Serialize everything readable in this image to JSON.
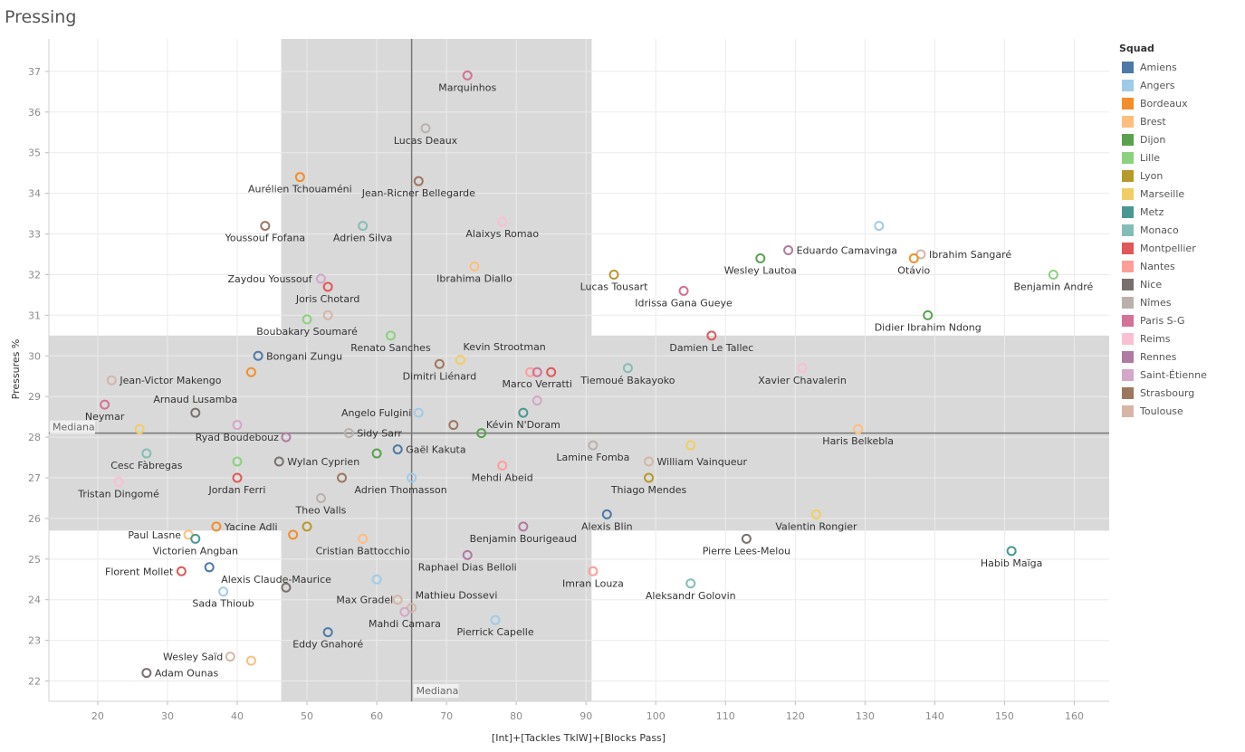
{
  "page": {
    "title": "Pressing"
  },
  "chart_data": {
    "type": "scatter",
    "title": "Pressing",
    "xlabel": "[Int]+[Tackles TklW]+[Blocks Pass]",
    "ylabel": "Pressures %",
    "xlim": [
      13,
      165
    ],
    "ylim": [
      21.5,
      37.8
    ],
    "x_ticks": [
      20,
      30,
      40,
      50,
      60,
      70,
      80,
      90,
      100,
      110,
      120,
      130,
      140,
      150,
      160
    ],
    "y_ticks": [
      22,
      23,
      24,
      25,
      26,
      27,
      28,
      29,
      30,
      31,
      32,
      33,
      34,
      35,
      36,
      37
    ],
    "grid": true,
    "legend_position": "right",
    "median": {
      "x": 65,
      "y": 28.1,
      "label": "Mediana"
    },
    "bands": {
      "x_range": [
        46.3,
        90.8
      ],
      "y_range": [
        25.7,
        30.5
      ]
    },
    "legend": {
      "title": "Squad",
      "items": [
        {
          "name": "Amiens",
          "color": "#4e79a7"
        },
        {
          "name": "Angers",
          "color": "#a0cbe8"
        },
        {
          "name": "Bordeaux",
          "color": "#f28e2b"
        },
        {
          "name": "Brest",
          "color": "#ffbe7d"
        },
        {
          "name": "Dijon",
          "color": "#59a14f"
        },
        {
          "name": "Lille",
          "color": "#8cd17d"
        },
        {
          "name": "Lyon",
          "color": "#b6992d"
        },
        {
          "name": "Marseille",
          "color": "#f1ce63"
        },
        {
          "name": "Metz",
          "color": "#499894"
        },
        {
          "name": "Monaco",
          "color": "#86bcb6"
        },
        {
          "name": "Montpellier",
          "color": "#e15759"
        },
        {
          "name": "Nantes",
          "color": "#ff9d9a"
        },
        {
          "name": "Nice",
          "color": "#79706e"
        },
        {
          "name": "Nîmes",
          "color": "#bab0ac"
        },
        {
          "name": "Paris S-G",
          "color": "#d37295"
        },
        {
          "name": "Reims",
          "color": "#fabfd2"
        },
        {
          "name": "Rennes",
          "color": "#b07aa1"
        },
        {
          "name": "Saint-Étienne",
          "color": "#d4a6c8"
        },
        {
          "name": "Strasbourg",
          "color": "#9d7660"
        },
        {
          "name": "Toulouse",
          "color": "#d7b5a6"
        }
      ]
    },
    "points": [
      {
        "name": "Marquinhos",
        "x": 73,
        "y": 36.9,
        "squad": "Paris S-G",
        "lx": 0,
        "ly": 17
      },
      {
        "name": "Lucas Deaux",
        "x": 67,
        "y": 35.6,
        "squad": "Nîmes",
        "lx": 0,
        "ly": 17
      },
      {
        "name": "Aurélien Tchouaméni",
        "x": 49,
        "y": 34.4,
        "squad": "Bordeaux",
        "lx": 0,
        "ly": 17
      },
      {
        "name": "Jean-Ricner Bellegarde",
        "x": 66,
        "y": 34.3,
        "squad": "Strasbourg",
        "lx": 0,
        "ly": 17
      },
      {
        "name": "Youssouf Fofana",
        "x": 44,
        "y": 33.2,
        "squad": "Strasbourg",
        "lx": 0,
        "ly": 17
      },
      {
        "name": "Adrien Silva",
        "x": 58,
        "y": 33.2,
        "squad": "Monaco",
        "lx": 0,
        "ly": 17
      },
      {
        "name": "Alaixys Romao",
        "x": 78,
        "y": 33.3,
        "squad": "Reims",
        "lx": 0,
        "ly": 17
      },
      {
        "name": "Ibrahima Diallo",
        "x": 74,
        "y": 32.2,
        "squad": "Brest",
        "lx": 0,
        "ly": 17
      },
      {
        "name": "Zaydou Youssouf",
        "x": 52,
        "y": 31.9,
        "squad": "Saint-Étienne",
        "lx": -10,
        "ly": 4,
        "anchor": "end"
      },
      {
        "name": "Joris Chotard",
        "x": 53,
        "y": 31.7,
        "squad": "Montpellier",
        "lx": 0,
        "ly": 17
      },
      {
        "name": "Boubakary Soumaré",
        "x": 50,
        "y": 30.9,
        "squad": "Lille",
        "lx": 0,
        "ly": 17
      },
      {
        "name": "",
        "x": 53,
        "y": 31.0,
        "squad": "Toulouse"
      },
      {
        "name": "Renato Sanches",
        "x": 62,
        "y": 30.5,
        "squad": "Lille",
        "lx": 0,
        "ly": 17
      },
      {
        "name": "Bongani Zungu",
        "x": 43,
        "y": 30.0,
        "squad": "Amiens",
        "lx": 9,
        "ly": 4,
        "anchor": "start"
      },
      {
        "name": "Kevin Strootman",
        "x": 72,
        "y": 29.9,
        "squad": "Marseille",
        "lx": 3,
        "ly": -11,
        "anchor": "start"
      },
      {
        "name": "Dimitri Liénard",
        "x": 69,
        "y": 29.8,
        "squad": "Strasbourg",
        "lx": 0,
        "ly": 17
      },
      {
        "name": "",
        "x": 42,
        "y": 29.6,
        "squad": "Bordeaux"
      },
      {
        "name": "Jean-Victor Makengo",
        "x": 22,
        "y": 29.4,
        "squad": "Toulouse",
        "lx": 9,
        "ly": 4,
        "anchor": "start"
      },
      {
        "name": "",
        "x": 82,
        "y": 29.6,
        "squad": "Nantes"
      },
      {
        "name": "Marco Verratti",
        "x": 83,
        "y": 29.6,
        "squad": "Paris S-G",
        "lx": 0,
        "ly": 17
      },
      {
        "name": "",
        "x": 85,
        "y": 29.6,
        "squad": "Montpellier"
      },
      {
        "name": "Tiemoué Bakayoko",
        "x": 96,
        "y": 29.7,
        "squad": "Monaco",
        "lx": 0,
        "ly": 17
      },
      {
        "name": "Damien Le Tallec",
        "x": 108,
        "y": 30.5,
        "squad": "Montpellier",
        "lx": 0,
        "ly": 17
      },
      {
        "name": "Xavier Chavalerin",
        "x": 121,
        "y": 29.7,
        "squad": "Reims",
        "lx": 0,
        "ly": 17
      },
      {
        "name": "Arnaud Lusamba",
        "x": 34,
        "y": 28.6,
        "squad": "Nice",
        "lx": 0,
        "ly": -11
      },
      {
        "name": "Neymar",
        "x": 21,
        "y": 28.8,
        "squad": "Paris S-G",
        "lx": 0,
        "ly": 17
      },
      {
        "name": "Angelo Fulgini",
        "x": 66,
        "y": 28.6,
        "squad": "Angers",
        "lx": -8,
        "ly": 4,
        "anchor": "end"
      },
      {
        "name": "",
        "x": 83,
        "y": 28.9,
        "squad": "Saint-Étienne"
      },
      {
        "name": "Kévin N'Doram",
        "x": 81,
        "y": 28.6,
        "squad": "Metz",
        "lx": 0,
        "ly": 17
      },
      {
        "name": "",
        "x": 26,
        "y": 28.2,
        "squad": "Marseille"
      },
      {
        "name": "",
        "x": 40,
        "y": 28.3,
        "squad": "Saint-Étienne"
      },
      {
        "name": "Ryad Boudebouz",
        "x": 47,
        "y": 28.0,
        "squad": "Rennes",
        "lx": -8,
        "ly": 4,
        "anchor": "end"
      },
      {
        "name": "Sidy Sarr",
        "x": 56,
        "y": 28.1,
        "squad": "Nîmes",
        "lx": 9,
        "ly": 4,
        "anchor": "start"
      },
      {
        "name": "",
        "x": 71,
        "y": 28.3,
        "squad": "Strasbourg"
      },
      {
        "name": "",
        "x": 75,
        "y": 28.1,
        "squad": "Dijon"
      },
      {
        "name": "Lamine Fomba",
        "x": 91,
        "y": 27.8,
        "squad": "Nîmes",
        "lx": 0,
        "ly": 17
      },
      {
        "name": "Haris Belkebla",
        "x": 129,
        "y": 28.2,
        "squad": "Brest",
        "lx": 0,
        "ly": 17
      },
      {
        "name": "Cesc Fàbregas",
        "x": 27,
        "y": 27.6,
        "squad": "Monaco",
        "lx": 0,
        "ly": 17
      },
      {
        "name": "",
        "x": 40,
        "y": 27.4,
        "squad": "Lille"
      },
      {
        "name": "Wylan Cyprien",
        "x": 46,
        "y": 27.4,
        "squad": "Nice",
        "lx": 9,
        "ly": 4,
        "anchor": "start"
      },
      {
        "name": "",
        "x": 60,
        "y": 27.6,
        "squad": "Dijon"
      },
      {
        "name": "Gaël Kakuta",
        "x": 63,
        "y": 27.7,
        "squad": "Amiens",
        "lx": 9,
        "ly": 4,
        "anchor": "start"
      },
      {
        "name": "Mehdi Abeid",
        "x": 78,
        "y": 27.3,
        "squad": "Nantes",
        "lx": 0,
        "ly": 17
      },
      {
        "name": "William Vainqueur",
        "x": 99,
        "y": 27.4,
        "squad": "Toulouse",
        "lx": 9,
        "ly": 4,
        "anchor": "start"
      },
      {
        "name": "",
        "x": 105,
        "y": 27.8,
        "squad": "Marseille"
      },
      {
        "name": "Tristan Dingomé",
        "x": 23,
        "y": 26.9,
        "squad": "Reims",
        "lx": 0,
        "ly": 17
      },
      {
        "name": "Jordan Ferri",
        "x": 40,
        "y": 27.0,
        "squad": "Montpellier",
        "lx": 0,
        "ly": 17
      },
      {
        "name": "",
        "x": 55,
        "y": 27.0,
        "squad": "Strasbourg"
      },
      {
        "name": "Adrien Thomasson",
        "x": 65,
        "y": 27.0,
        "squad": "Angers",
        "lx": -12,
        "ly": 17
      },
      {
        "name": "Thiago Mendes",
        "x": 99,
        "y": 27.0,
        "squad": "Lyon",
        "lx": 0,
        "ly": 17
      },
      {
        "name": "Theo Valls",
        "x": 52,
        "y": 26.5,
        "squad": "Nîmes",
        "lx": 0,
        "ly": 17
      },
      {
        "name": "Alexis Blin",
        "x": 93,
        "y": 26.1,
        "squad": "Amiens",
        "lx": 0,
        "ly": 17
      },
      {
        "name": "Valentin Rongier",
        "x": 123,
        "y": 26.1,
        "squad": "Marseille",
        "lx": 0,
        "ly": 17
      },
      {
        "name": "Yacine Adli",
        "x": 37,
        "y": 25.8,
        "squad": "Bordeaux",
        "lx": 9,
        "ly": 4,
        "anchor": "start"
      },
      {
        "name": "",
        "x": 50,
        "y": 25.8,
        "squad": "Lyon"
      },
      {
        "name": "Benjamin Bourigeaud",
        "x": 81,
        "y": 25.8,
        "squad": "Rennes",
        "lx": 0,
        "ly": 17
      },
      {
        "name": "Paul Lasne",
        "x": 33,
        "y": 25.6,
        "squad": "Brest",
        "lx": -8,
        "ly": 4,
        "anchor": "end"
      },
      {
        "name": "",
        "x": 48,
        "y": 25.6,
        "squad": "Bordeaux"
      },
      {
        "name": "Cristian Battocchio",
        "x": 58,
        "y": 25.5,
        "squad": "Brest",
        "lx": 0,
        "ly": 17
      },
      {
        "name": "Victorien Angban",
        "x": 34,
        "y": 25.5,
        "squad": "Metz",
        "lx": 0,
        "ly": 17
      },
      {
        "name": "Pierre Lees-Melou",
        "x": 113,
        "y": 25.5,
        "squad": "Nice",
        "lx": 0,
        "ly": 17
      },
      {
        "name": "Habib Maïga",
        "x": 151,
        "y": 25.2,
        "squad": "Metz",
        "lx": 0,
        "ly": 17
      },
      {
        "name": "Raphael Dias Belloli",
        "x": 73,
        "y": 25.1,
        "squad": "Rennes",
        "lx": 0,
        "ly": 17
      },
      {
        "name": "Florent Mollet",
        "x": 32,
        "y": 24.7,
        "squad": "Montpellier",
        "lx": -9,
        "ly": 4,
        "anchor": "end"
      },
      {
        "name": "Alexis Claude-Maurice",
        "x": 36,
        "y": 24.8,
        "squad": "Amiens",
        "lx": 13,
        "ly": 17,
        "anchor": "start"
      },
      {
        "name": "Imran Louza",
        "x": 91,
        "y": 24.7,
        "squad": "Nantes",
        "lx": 0,
        "ly": 17
      },
      {
        "name": "Aleksandr Golovin",
        "x": 105,
        "y": 24.4,
        "squad": "Monaco",
        "lx": 0,
        "ly": 17
      },
      {
        "name": "",
        "x": 47,
        "y": 24.3,
        "squad": "Nice"
      },
      {
        "name": "",
        "x": 60,
        "y": 24.5,
        "squad": "Angers"
      },
      {
        "name": "Sada Thioub",
        "x": 38,
        "y": 24.2,
        "squad": "Angers",
        "lx": 0,
        "ly": 17
      },
      {
        "name": "Max Gradel",
        "x": 63,
        "y": 24.0,
        "squad": "Toulouse",
        "lx": -5,
        "ly": 4,
        "anchor": "end"
      },
      {
        "name": "Mathieu Dossevi",
        "x": 65,
        "y": 23.8,
        "squad": "Toulouse",
        "lx": 4,
        "ly": -10,
        "anchor": "start"
      },
      {
        "name": "Mahdi Camara",
        "x": 64,
        "y": 23.7,
        "squad": "Saint-Étienne",
        "lx": 0,
        "ly": 17
      },
      {
        "name": "Pierrick Capelle",
        "x": 77,
        "y": 23.5,
        "squad": "Angers",
        "lx": 0,
        "ly": 17
      },
      {
        "name": "Eddy Gnahoré",
        "x": 53,
        "y": 23.2,
        "squad": "Amiens",
        "lx": 0,
        "ly": 17
      },
      {
        "name": "Wesley Saïd",
        "x": 39,
        "y": 22.6,
        "squad": "Toulouse",
        "lx": -8,
        "ly": 4,
        "anchor": "end"
      },
      {
        "name": "",
        "x": 42,
        "y": 22.5,
        "squad": "Brest"
      },
      {
        "name": "Adam Ounas",
        "x": 27,
        "y": 22.2,
        "squad": "Nice",
        "lx": 9,
        "ly": 4,
        "anchor": "start"
      },
      {
        "name": "Eduardo Camavinga",
        "x": 119,
        "y": 32.6,
        "squad": "Rennes",
        "lx": 9,
        "ly": 4,
        "anchor": "start"
      },
      {
        "name": "",
        "x": 132,
        "y": 33.2,
        "squad": "Angers"
      },
      {
        "name": "Ibrahim Sangaré",
        "x": 138,
        "y": 32.5,
        "squad": "Toulouse",
        "lx": 9,
        "ly": 4,
        "anchor": "start"
      },
      {
        "name": "Otávio",
        "x": 137,
        "y": 32.4,
        "squad": "Bordeaux",
        "lx": 0,
        "ly": 17
      },
      {
        "name": "Wesley Lautoa",
        "x": 115,
        "y": 32.4,
        "squad": "Dijon",
        "lx": 0,
        "ly": 17
      },
      {
        "name": "Lucas Tousart",
        "x": 94,
        "y": 32.0,
        "squad": "Lyon",
        "lx": 0,
        "ly": 17
      },
      {
        "name": "Idrissa Gana Gueye",
        "x": 104,
        "y": 31.6,
        "squad": "Paris S-G",
        "lx": 0,
        "ly": 17
      },
      {
        "name": "Benjamin André",
        "x": 157,
        "y": 32.0,
        "squad": "Lille",
        "lx": 0,
        "ly": 17
      },
      {
        "name": "Didier Ibrahim Ndong",
        "x": 139,
        "y": 31.0,
        "squad": "Dijon",
        "lx": 0,
        "ly": 17
      }
    ]
  }
}
